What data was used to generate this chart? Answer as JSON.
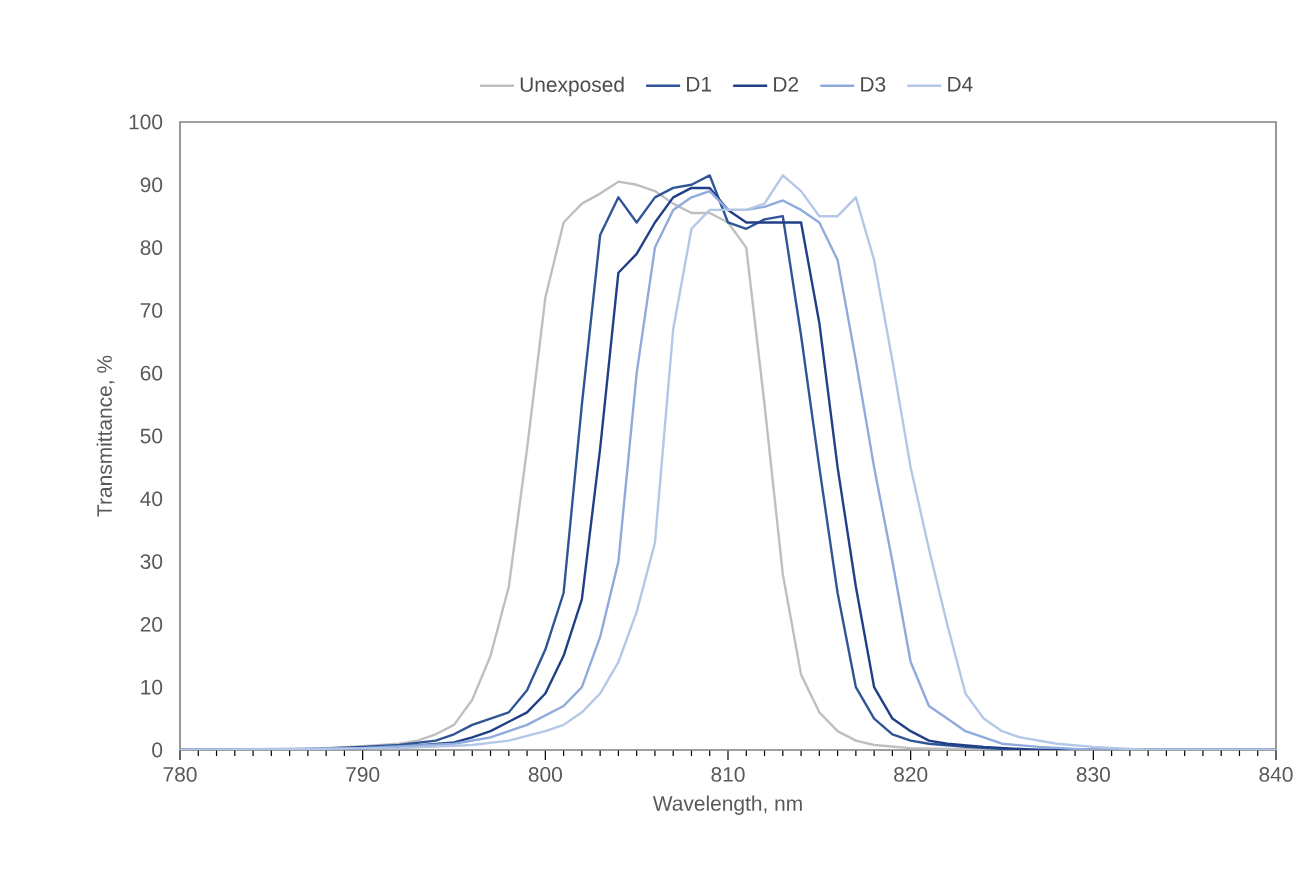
{
  "chart_data": {
    "type": "line",
    "xlabel": "Wavelength, nm",
    "ylabel": "Transmittance, %",
    "xlim": [
      780,
      840
    ],
    "ylim": [
      0,
      100
    ],
    "xticks": [
      780,
      790,
      800,
      810,
      820,
      830,
      840
    ],
    "yticks": [
      0,
      10,
      20,
      30,
      40,
      50,
      60,
      70,
      80,
      90,
      100
    ],
    "legend": "top",
    "grid": false,
    "series": [
      {
        "name": "Unexposed",
        "color": "#bfbfbf",
        "x": [
          780,
          785,
          788,
          790,
          792,
          793,
          794,
          795,
          796,
          797,
          798,
          799,
          800,
          801,
          802,
          803,
          804,
          805,
          806,
          807,
          808,
          809,
          810,
          811,
          812,
          813,
          814,
          815,
          816,
          817,
          818,
          820,
          825,
          840
        ],
        "values": [
          0,
          0,
          0.3,
          0.6,
          1,
          1.5,
          2.5,
          4,
          8,
          15,
          26,
          48,
          72,
          84,
          87,
          88.6,
          90.5,
          90,
          89,
          87,
          85.5,
          85.5,
          84,
          80,
          55,
          28,
          12,
          6,
          3,
          1.5,
          0.8,
          0.3,
          0,
          0
        ]
      },
      {
        "name": "D1",
        "color": "#2f5597",
        "x": [
          780,
          786,
          790,
          792,
          794,
          795,
          796,
          797,
          798,
          799,
          800,
          801,
          802,
          803,
          804,
          805,
          806,
          807,
          808,
          809,
          810,
          811,
          812,
          813,
          814,
          815,
          816,
          817,
          818,
          819,
          820,
          821,
          823,
          826,
          840
        ],
        "values": [
          0,
          0,
          0.5,
          0.8,
          1.5,
          2.5,
          4,
          5,
          6,
          9.5,
          16,
          25,
          55,
          82,
          88,
          84,
          88,
          89.5,
          90,
          91.5,
          84,
          83,
          84.5,
          85,
          66,
          45,
          25,
          10,
          5,
          2.5,
          1.5,
          1,
          0.5,
          0,
          0
        ]
      },
      {
        "name": "D2",
        "color": "#203f86",
        "x": [
          780,
          788,
          792,
          795,
          796,
          797,
          798,
          799,
          800,
          801,
          802,
          803,
          804,
          805,
          806,
          807,
          808,
          809,
          810,
          811,
          812,
          813,
          814,
          815,
          816,
          817,
          818,
          819,
          820,
          821,
          822,
          824,
          827,
          840
        ],
        "values": [
          0,
          0,
          0.5,
          1.2,
          2,
          3,
          4.5,
          6,
          9,
          15,
          24,
          48,
          76,
          79,
          84,
          88,
          89.5,
          89.5,
          86,
          84,
          84,
          84,
          84,
          68,
          45,
          26,
          10,
          5,
          3,
          1.5,
          1,
          0.5,
          0,
          0
        ]
      },
      {
        "name": "D3",
        "color": "#8faadc",
        "x": [
          780,
          790,
          795,
          797,
          798,
          799,
          800,
          801,
          802,
          803,
          804,
          805,
          806,
          807,
          808,
          809,
          810,
          811,
          812,
          813,
          814,
          815,
          816,
          817,
          818,
          819,
          820,
          821,
          822,
          823,
          824,
          825,
          827,
          830,
          840
        ],
        "values": [
          0,
          0.3,
          1,
          2,
          3,
          4,
          5.5,
          7,
          10,
          18,
          30,
          60,
          80,
          86,
          88,
          89,
          86,
          86,
          86.5,
          87.5,
          86,
          84,
          78,
          62,
          45,
          30,
          14,
          7,
          5,
          3,
          2,
          1,
          0.5,
          0,
          0
        ]
      },
      {
        "name": "D4",
        "color": "#b4c7e7",
        "x": [
          780,
          792,
          796,
          798,
          800,
          801,
          802,
          803,
          804,
          805,
          806,
          807,
          808,
          809,
          810,
          811,
          812,
          813,
          814,
          815,
          816,
          817,
          818,
          819,
          820,
          821,
          822,
          823,
          824,
          825,
          826,
          828,
          830,
          833,
          840
        ],
        "values": [
          0,
          0.3,
          0.8,
          1.5,
          3,
          4,
          6,
          9,
          14,
          22,
          33,
          67,
          83,
          86,
          86,
          86,
          87,
          91.5,
          89,
          85,
          85,
          88,
          78,
          62,
          45,
          32,
          20,
          9,
          5,
          3,
          2,
          1,
          0.5,
          0,
          0
        ]
      }
    ]
  }
}
